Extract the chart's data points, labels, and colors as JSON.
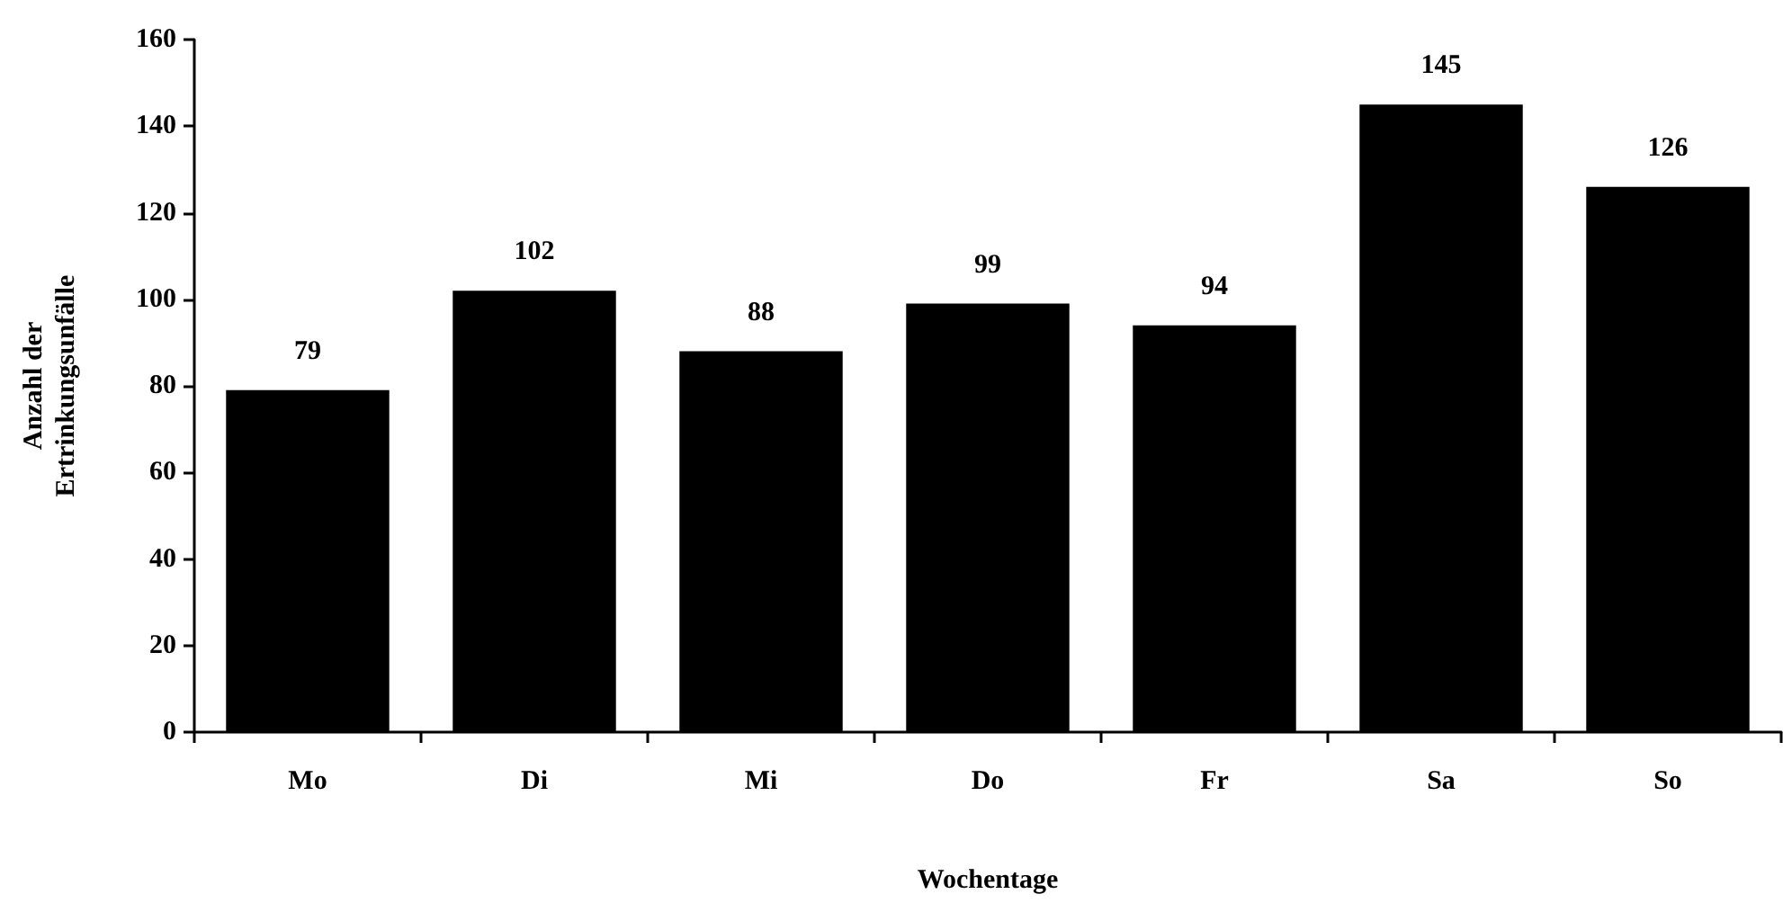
{
  "chart_data": {
    "type": "bar",
    "xlabel": "Wochentage",
    "ylabel": "Anzahl der Ertrinkungsunfälle",
    "categories": [
      "Mo",
      "Di",
      "Mi",
      "Do",
      "Fr",
      "Sa",
      "So"
    ],
    "values": [
      79,
      102,
      88,
      99,
      94,
      145,
      126
    ],
    "color": "#000000",
    "ylim": [
      0,
      160
    ],
    "yticks": [
      0,
      20,
      40,
      60,
      80,
      100,
      120,
      140,
      160
    ],
    "grid": false,
    "data_labels": true
  }
}
